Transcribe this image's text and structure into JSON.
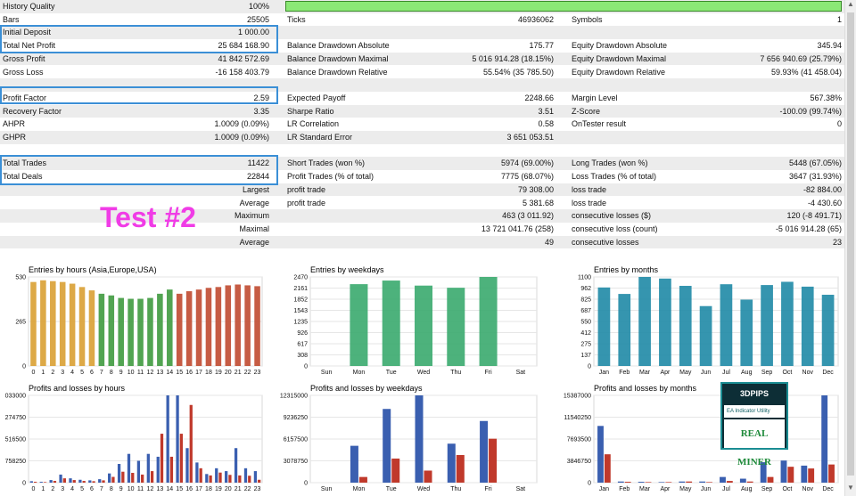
{
  "stats": {
    "rows": [
      {
        "shade": true,
        "c1l": "History Quality",
        "c1r": "100%",
        "c2l": "",
        "c2r": "",
        "c3l": "",
        "c3r": "",
        "bar": true
      },
      {
        "shade": false,
        "c1l": "Bars",
        "c1r": "25505",
        "c2l": "Ticks",
        "c2r": "46936062",
        "c3l": "Symbols",
        "c3r": "1"
      },
      {
        "shade": true,
        "c1l": "Initial Deposit",
        "c1r": "1 000.00",
        "c2l": "",
        "c2r": "",
        "c3l": "",
        "c3r": ""
      },
      {
        "shade": false,
        "c1l": "Total Net Profit",
        "c1r": "25 684 168.90",
        "c2l": "Balance Drawdown Absolute",
        "c2r": "175.77",
        "c3l": "Equity Drawdown Absolute",
        "c3r": "345.94"
      },
      {
        "shade": true,
        "c1l": "Gross Profit",
        "c1r": "41 842 572.69",
        "c2l": "Balance Drawdown Maximal",
        "c2r": "5 016 914.28 (18.15%)",
        "c3l": "Equity Drawdown Maximal",
        "c3r": "7 656 940.69 (25.79%)"
      },
      {
        "shade": false,
        "c1l": "Gross Loss",
        "c1r": "-16 158 403.79",
        "c2l": "Balance Drawdown Relative",
        "c2r": "55.54% (35 785.50)",
        "c3l": "Equity Drawdown Relative",
        "c3r": "59.93% (41 458.04)"
      },
      {
        "shade": true,
        "c1l": "",
        "c1r": "",
        "c2l": "",
        "c2r": "",
        "c3l": "",
        "c3r": ""
      },
      {
        "shade": false,
        "c1l": "Profit Factor",
        "c1r": "2.59",
        "c2l": "Expected Payoff",
        "c2r": "2248.66",
        "c3l": "Margin Level",
        "c3r": "567.38%"
      },
      {
        "shade": true,
        "c1l": "Recovery Factor",
        "c1r": "3.35",
        "c2l": "Sharpe Ratio",
        "c2r": "3.51",
        "c3l": "Z-Score",
        "c3r": "-100.09 (99.74%)"
      },
      {
        "shade": false,
        "c1l": "AHPR",
        "c1r": "1.0009 (0.09%)",
        "c2l": "LR Correlation",
        "c2r": "0.58",
        "c3l": "OnTester result",
        "c3r": "0"
      },
      {
        "shade": true,
        "c1l": "GHPR",
        "c1r": "1.0009 (0.09%)",
        "c2l": "LR Standard Error",
        "c2r": "3 651 053.51",
        "c3l": "",
        "c3r": ""
      },
      {
        "shade": false,
        "c1l": "",
        "c1r": "",
        "c2l": "",
        "c2r": "",
        "c3l": "",
        "c3r": ""
      },
      {
        "shade": true,
        "c1l": "Total Trades",
        "c1r": "11422",
        "c2l": "Short Trades (won %)",
        "c2r": "5974 (69.00%)",
        "c3l": "Long Trades (won %)",
        "c3r": "5448 (67.05%)"
      },
      {
        "shade": false,
        "c1l": "Total Deals",
        "c1r": "22844",
        "c2l": "Profit Trades (% of total)",
        "c2r": "7775 (68.07%)",
        "c3l": "Loss Trades (% of total)",
        "c3r": "3647 (31.93%)"
      },
      {
        "shade": true,
        "c1l": "",
        "c1r": "Largest",
        "c2l": "profit trade",
        "c2r": "79 308.00",
        "c3l": "loss trade",
        "c3r": "-82 884.00"
      },
      {
        "shade": false,
        "c1l": "",
        "c1r": "Average",
        "c2l": "profit trade",
        "c2r": "5 381.68",
        "c3l": "loss trade",
        "c3r": "-4 430.60"
      },
      {
        "shade": true,
        "c1l": "",
        "c1r": "Maximum",
        "c2l": "",
        "c2r": "463 (3 011.92)",
        "c3l": "consecutive losses ($)",
        "c3r": "120 (-8 491.71)"
      },
      {
        "shade": false,
        "c1l": "",
        "c1r": "Maximal",
        "c2l": "",
        "c2r": "13 721 041.76 (258)",
        "c3l": "consecutive loss (count)",
        "c3r": "-5 016 914.28 (65)"
      },
      {
        "shade": true,
        "c1l": "",
        "c1r": "Average",
        "c2l": "",
        "c2r": "49",
        "c3l": "consecutive losses",
        "c3r": "23"
      },
      {
        "shade": false,
        "c1l": "",
        "c1r": "",
        "c2l": "",
        "c2r": "",
        "c3l": "",
        "c3r": ""
      }
    ]
  },
  "test_label": "Test #2",
  "colors": {
    "hq_bar": "#8be876",
    "highlight_box": "#3b8fd6",
    "test_label": "#f03ce6"
  },
  "logo": {
    "top": "3DPIPS",
    "mid": "EA Indicator Utility",
    "bot": "REAL MINER"
  },
  "chart_data": [
    {
      "type": "bar",
      "title": "Entries by hours (Asia,Europe,USA)",
      "categories": [
        "0",
        "1",
        "2",
        "3",
        "4",
        "5",
        "6",
        "7",
        "8",
        "9",
        "10",
        "11",
        "12",
        "13",
        "14",
        "15",
        "16",
        "17",
        "18",
        "19",
        "20",
        "21",
        "22",
        "23"
      ],
      "yticks": [
        "530",
        "265",
        "0"
      ],
      "ylim": [
        0,
        530
      ],
      "values": [
        500,
        510,
        505,
        500,
        490,
        470,
        450,
        430,
        420,
        405,
        400,
        400,
        405,
        430,
        455,
        430,
        445,
        455,
        465,
        470,
        480,
        485,
        480,
        475
      ],
      "colors_by_index": [
        "#d9a033",
        "#d9a033",
        "#d9a033",
        "#d9a033",
        "#d9a033",
        "#d9a033",
        "#d9a033",
        "#3f9a3f",
        "#3f9a3f",
        "#3f9a3f",
        "#3f9a3f",
        "#3f9a3f",
        "#3f9a3f",
        "#3f9a3f",
        "#3f9a3f",
        "#c04a30",
        "#c04a30",
        "#c04a30",
        "#c04a30",
        "#c04a30",
        "#c04a30",
        "#c04a30",
        "#c04a30",
        "#c04a30"
      ]
    },
    {
      "type": "bar",
      "title": "Entries by weekdays",
      "categories": [
        "Sun",
        "Mon",
        "Tue",
        "Wed",
        "Thu",
        "Fri",
        "Sat"
      ],
      "yticks": [
        "2470",
        "2161",
        "1852",
        "1543",
        "1235",
        "926",
        "617",
        "308",
        "0"
      ],
      "ylim": [
        0,
        2470
      ],
      "values": [
        0,
        2270,
        2370,
        2230,
        2170,
        2470,
        0
      ],
      "color": "#3aaa6e"
    },
    {
      "type": "bar",
      "title": "Entries by months",
      "categories": [
        "Jan",
        "Feb",
        "Mar",
        "Apr",
        "May",
        "Jun",
        "Jul",
        "Aug",
        "Sep",
        "Oct",
        "Nov",
        "Dec"
      ],
      "yticks": [
        "1100",
        "962",
        "825",
        "687",
        "550",
        "412",
        "275",
        "137",
        "0"
      ],
      "ylim": [
        0,
        1100
      ],
      "values": [
        970,
        890,
        1100,
        1080,
        990,
        740,
        1010,
        820,
        1000,
        1040,
        980,
        880
      ],
      "color": "#1f8aa6"
    },
    {
      "type": "bar",
      "title": "Profits and losses by hours",
      "categories": [
        "0",
        "1",
        "2",
        "3",
        "4",
        "5",
        "6",
        "7",
        "8",
        "9",
        "10",
        "11",
        "12",
        "13",
        "14",
        "15",
        "16",
        "17",
        "18",
        "19",
        "20",
        "21",
        "22",
        "23"
      ],
      "yticks": [
        "033000",
        "274750",
        "516500",
        "758250",
        "0"
      ],
      "ylim": [
        0,
        3033000
      ],
      "series": [
        {
          "name": "profit",
          "color": "#3a5fb0",
          "values": [
            50000,
            30000,
            90000,
            280000,
            150000,
            100000,
            80000,
            120000,
            320000,
            650000,
            1000000,
            760000,
            1000000,
            900000,
            3033000,
            3033000,
            1200000,
            700000,
            300000,
            500000,
            400000,
            1200000,
            500000,
            400000
          ]
        },
        {
          "name": "loss",
          "color": "#c0392b",
          "values": [
            30000,
            20000,
            60000,
            150000,
            90000,
            60000,
            50000,
            80000,
            200000,
            380000,
            340000,
            280000,
            400000,
            1700000,
            900000,
            1700000,
            2700000,
            500000,
            250000,
            350000,
            270000,
            250000,
            240000,
            100000
          ]
        }
      ]
    },
    {
      "type": "bar",
      "title": "Profits and losses by weekdays",
      "categories": [
        "Sun",
        "Mon",
        "Tue",
        "Wed",
        "Thu",
        "Fri",
        "Sat"
      ],
      "yticks": [
        "12315000",
        "9236250",
        "6157500",
        "3078750",
        "0"
      ],
      "ylim": [
        0,
        12315000
      ],
      "series": [
        {
          "name": "profit",
          "color": "#3a5fb0",
          "values": [
            0,
            5200000,
            10400000,
            12315000,
            5500000,
            8700000,
            0
          ]
        },
        {
          "name": "loss",
          "color": "#c0392b",
          "values": [
            0,
            800000,
            3400000,
            1700000,
            3900000,
            6200000,
            0
          ]
        }
      ]
    },
    {
      "type": "bar",
      "title": "Profits and losses by months",
      "categories": [
        "Jan",
        "Feb",
        "Mar",
        "Apr",
        "May",
        "Jun",
        "Jul",
        "Aug",
        "Sep",
        "Oct",
        "Nov",
        "Dec"
      ],
      "yticks": [
        "15387000",
        "11540250",
        "7693500",
        "3846750",
        "0"
      ],
      "ylim": [
        0,
        15387000
      ],
      "series": [
        {
          "name": "profit",
          "color": "#3a5fb0",
          "values": [
            10000000,
            200000,
            150000,
            100000,
            200000,
            200000,
            1000000,
            700000,
            3600000,
            3900000,
            3000000,
            15387000
          ]
        },
        {
          "name": "loss",
          "color": "#c0392b",
          "values": [
            5000000,
            150000,
            100000,
            100000,
            200000,
            100000,
            300000,
            200000,
            1000000,
            2800000,
            2500000,
            3200000
          ]
        }
      ]
    }
  ]
}
